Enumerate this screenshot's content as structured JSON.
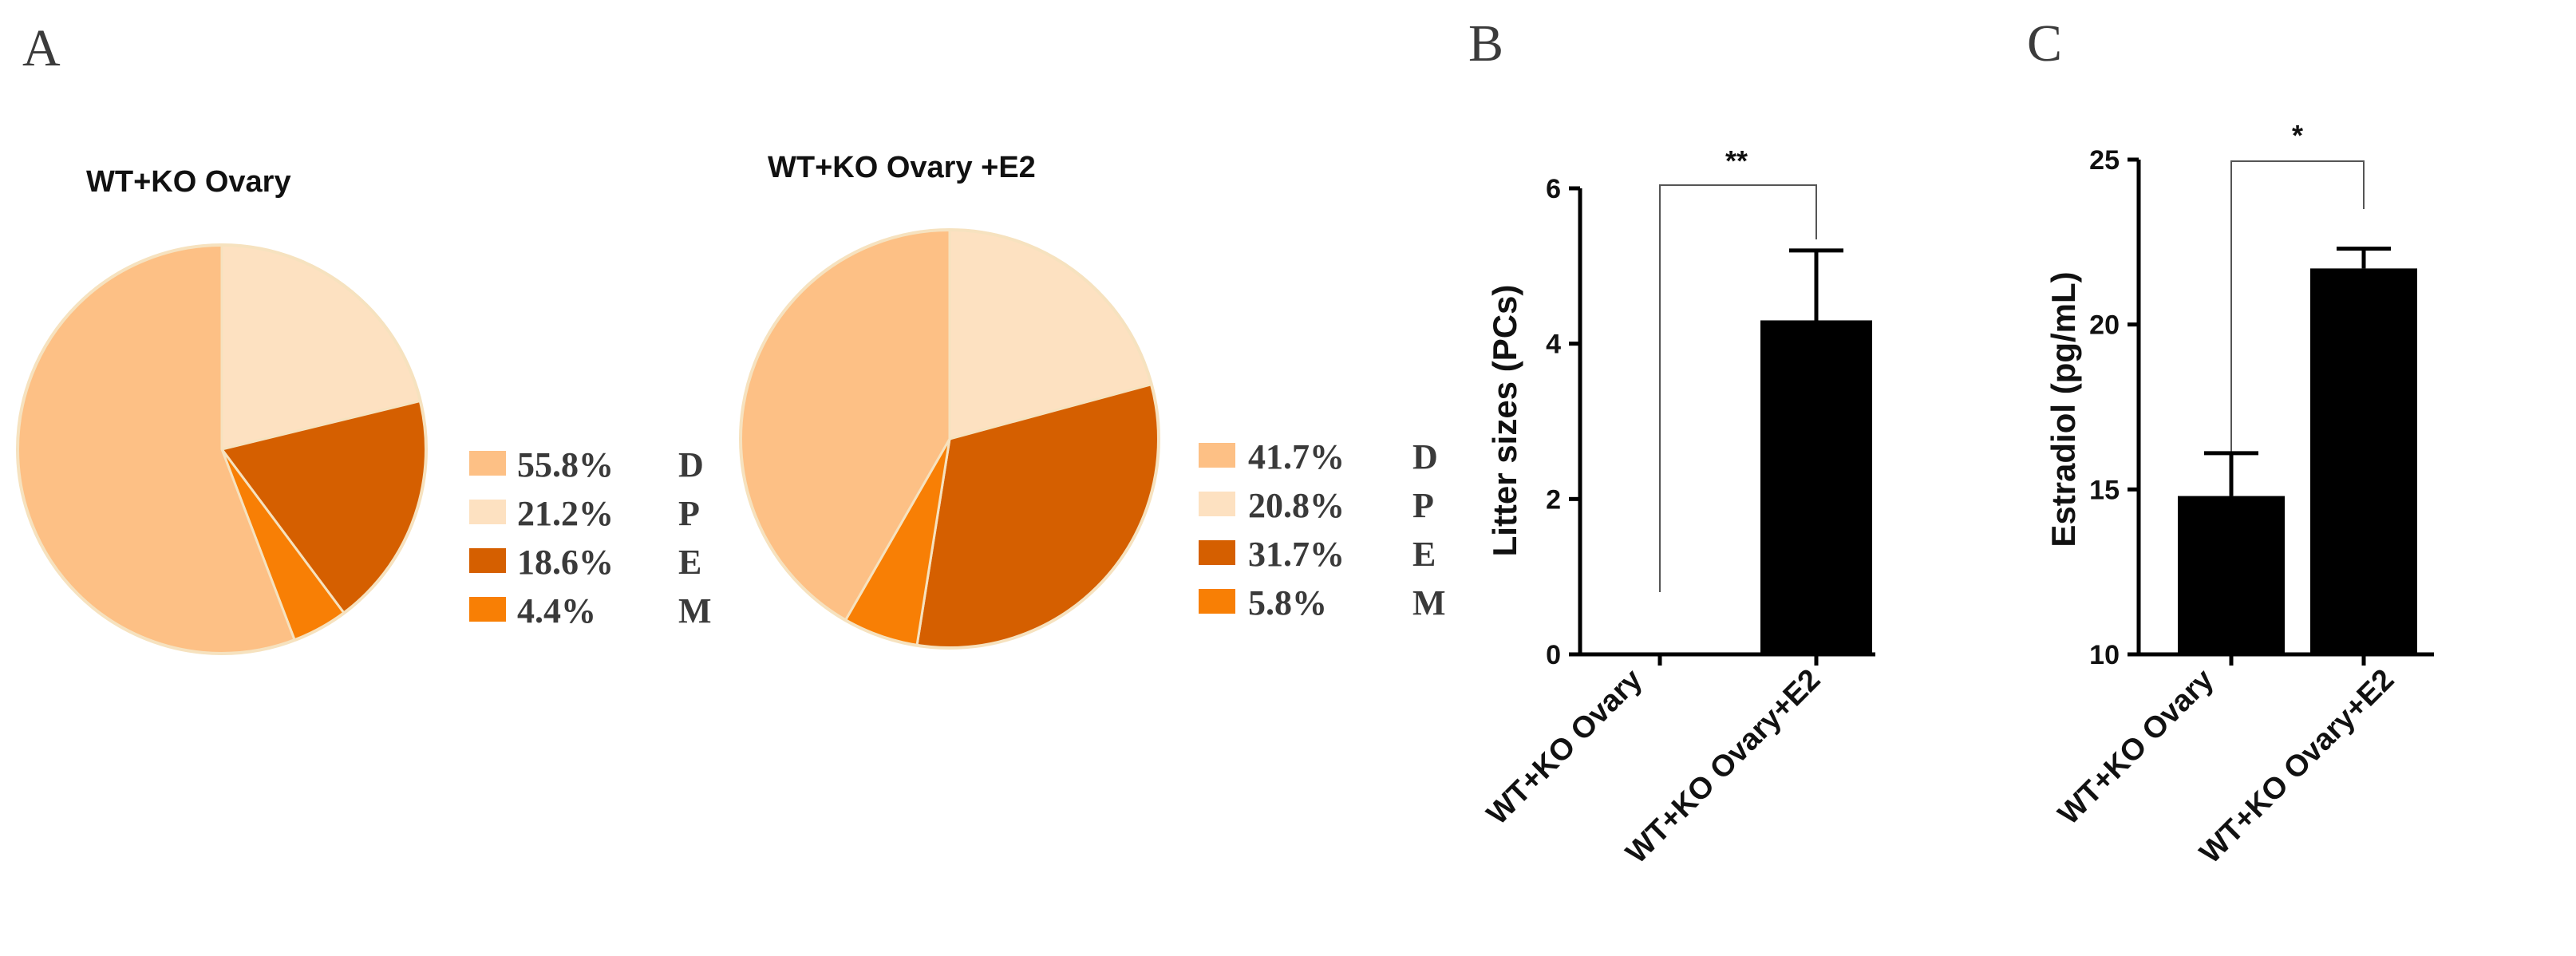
{
  "panels": {
    "a": "A",
    "b": "B",
    "c": "C"
  },
  "colors": {
    "D": "#FDC085",
    "P": "#FDE1C1",
    "E": "#D55F00",
    "M": "#F87F05",
    "pie_edge": "#F6E2BF",
    "bar": "#000000"
  },
  "chart_data": [
    {
      "type": "pie",
      "title": "WT+KO Ovary",
      "slices": [
        {
          "key": "D",
          "percent_label": "55.8%",
          "name": "D",
          "value": 55.8
        },
        {
          "key": "P",
          "percent_label": "21.2%",
          "name": "P",
          "value": 21.2
        },
        {
          "key": "E",
          "percent_label": "18.6%",
          "name": "E",
          "value": 18.6
        },
        {
          "key": "M",
          "percent_label": "4.4%",
          "name": "M",
          "value": 4.4
        }
      ],
      "start_order": [
        "P",
        "E",
        "M",
        "D"
      ],
      "legend": "right"
    },
    {
      "type": "pie",
      "title": "WT+KO Ovary +E2",
      "slices": [
        {
          "key": "D",
          "percent_label": "41.7%",
          "name": "D",
          "value": 41.7
        },
        {
          "key": "P",
          "percent_label": "20.8%",
          "name": "P",
          "value": 20.8
        },
        {
          "key": "E",
          "percent_label": "31.7%",
          "name": "E",
          "value": 31.7
        },
        {
          "key": "M",
          "percent_label": "5.8%",
          "name": "M",
          "value": 5.8
        }
      ],
      "start_order": [
        "P",
        "E",
        "M",
        "D"
      ],
      "legend": "right"
    },
    {
      "type": "bar",
      "categories": [
        "WT+KO Ovary",
        "WT+KO Ovary+E2"
      ],
      "values": [
        0,
        4.3
      ],
      "errors": [
        0,
        0.9
      ],
      "ylabel": "Litter sizes (PCs)",
      "ylim": [
        0,
        6
      ],
      "yticks": [
        0,
        2,
        4,
        6
      ],
      "significance": "**"
    },
    {
      "type": "bar",
      "categories": [
        "WT+KO Ovary",
        "WT+KO Ovary+E2"
      ],
      "values": [
        14.8,
        21.7
      ],
      "errors": [
        1.3,
        0.6
      ],
      "ylabel": "Estradiol (pg/mL)",
      "ylim": [
        10,
        25
      ],
      "yticks": [
        10,
        15,
        20,
        25
      ],
      "significance": "*"
    }
  ]
}
